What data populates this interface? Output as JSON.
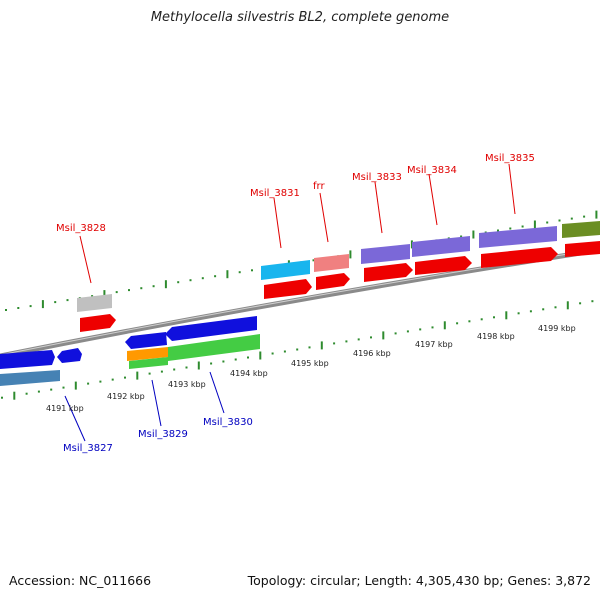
{
  "title": "Methylocella silvestris BL2, complete genome",
  "footer": {
    "accession": "Accession: NC_011666",
    "summary": "Topology: circular; Length: 4,305,430 bp; Genes: 3,872"
  },
  "colors": {
    "backbone": "#8a8a8a",
    "forward_label": "#e00000",
    "reverse_label": "#0000c0",
    "tick": "#2e8b2e",
    "cds_red": "#ee0000",
    "blue": "#1010dd",
    "green": "#44cc44",
    "lavender": "#7b68d8",
    "sky": "#19b5ee",
    "pink": "#f08080",
    "gray": "#c0c0c0",
    "olive": "#6b8e23",
    "orange": "#ff9900",
    "steel": "#4682b4"
  },
  "kbp_ticks": [
    "4191 kbp",
    "4192 kbp",
    "4193 kbp",
    "4194 kbp",
    "4195 kbp",
    "4196 kbp",
    "4197 kbp",
    "4198 kbp",
    "4199 kbp"
  ],
  "labels": {
    "forward": [
      "Msil_3828",
      "Msil_3831",
      "frr",
      "Msil_3833",
      "Msil_3834",
      "Msil_3835"
    ],
    "reverse": [
      "Msil_3827",
      "Msil_3829",
      "Msil_3830"
    ]
  }
}
